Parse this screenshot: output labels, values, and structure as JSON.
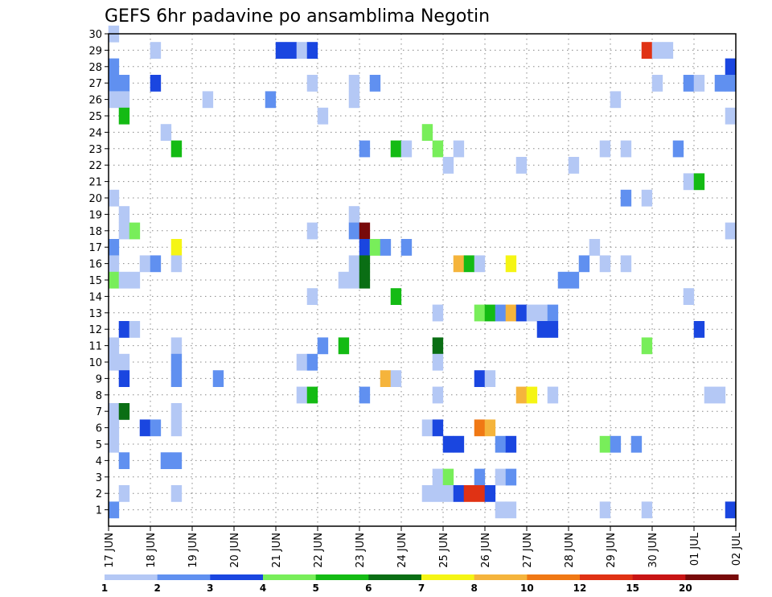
{
  "chart_data": {
    "type": "heatmap",
    "title": "GEFS 6hr padavine po ansamblima Negotin",
    "xlabel": "",
    "ylabel": "",
    "x_tick_labels": [
      "17 JUN",
      "18 JUN",
      "19 JUN",
      "20 JUN",
      "21 JUN",
      "22 JUN",
      "23 JUN",
      "24 JUN",
      "25 JUN",
      "26 JUN",
      "27 JUN",
      "28 JUN",
      "29 JUN",
      "30 JUN",
      "01 JUL",
      "02 JUL"
    ],
    "y_tick_labels": [
      "1",
      "2",
      "3",
      "4",
      "5",
      "6",
      "7",
      "8",
      "9",
      "10",
      "11",
      "12",
      "13",
      "14",
      "15",
      "16",
      "17",
      "18",
      "19",
      "20",
      "21",
      "22",
      "23",
      "24",
      "25",
      "26",
      "27",
      "28",
      "29",
      "30"
    ],
    "x_range_days": [
      0,
      15
    ],
    "y_range_members": [
      0,
      30
    ],
    "grid": true,
    "legend_placement": "bottom",
    "legend": {
      "labels": [
        "1",
        "2",
        "3",
        "4",
        "5",
        "6",
        "7",
        "8",
        "10",
        "12",
        "15",
        "20"
      ],
      "colors": [
        "#b4c8f5",
        "#6090f0",
        "#1a46e0",
        "#78ee5a",
        "#14bb14",
        "#0a6e14",
        "#f5f514",
        "#f5b43c",
        "#f07814",
        "#e03214",
        "#c81414",
        "#780a0a"
      ]
    },
    "cells": [
      [
        0.12,
        30,
        "#b4c8f5"
      ],
      [
        4.12,
        29,
        "#1a46e0"
      ],
      [
        4.37,
        29,
        "#1a46e0"
      ],
      [
        4.62,
        29,
        "#b4c8f5"
      ],
      [
        4.87,
        29,
        "#1a46e0"
      ],
      [
        1.12,
        29,
        "#b4c8f5"
      ],
      [
        12.87,
        29,
        "#e03214"
      ],
      [
        13.12,
        29,
        "#b4c8f5"
      ],
      [
        13.37,
        29,
        "#b4c8f5"
      ],
      [
        0.12,
        28,
        "#6090f0"
      ],
      [
        14.87,
        28,
        "#1a46e0"
      ],
      [
        0.12,
        27,
        "#6090f0"
      ],
      [
        0.37,
        27,
        "#6090f0"
      ],
      [
        1.12,
        27,
        "#1a46e0"
      ],
      [
        4.87,
        27,
        "#b4c8f5"
      ],
      [
        5.87,
        27,
        "#b4c8f5"
      ],
      [
        6.37,
        27,
        "#6090f0"
      ],
      [
        13.12,
        27,
        "#b4c8f5"
      ],
      [
        13.87,
        27,
        "#6090f0"
      ],
      [
        14.12,
        27,
        "#b4c8f5"
      ],
      [
        14.62,
        27,
        "#6090f0"
      ],
      [
        14.87,
        27,
        "#6090f0"
      ],
      [
        0.12,
        26,
        "#b4c8f5"
      ],
      [
        0.37,
        26,
        "#b4c8f5"
      ],
      [
        2.37,
        26,
        "#b4c8f5"
      ],
      [
        3.87,
        26,
        "#6090f0"
      ],
      [
        5.87,
        26,
        "#b4c8f5"
      ],
      [
        12.12,
        26,
        "#b4c8f5"
      ],
      [
        0.37,
        25,
        "#14bb14"
      ],
      [
        5.12,
        25,
        "#b4c8f5"
      ],
      [
        14.87,
        25,
        "#b4c8f5"
      ],
      [
        1.37,
        24,
        "#b4c8f5"
      ],
      [
        7.62,
        24,
        "#78ee5a"
      ],
      [
        1.62,
        23,
        "#14bb14"
      ],
      [
        6.12,
        23,
        "#6090f0"
      ],
      [
        6.87,
        23,
        "#14bb14"
      ],
      [
        7.12,
        23,
        "#b4c8f5"
      ],
      [
        7.87,
        23,
        "#78ee5a"
      ],
      [
        8.37,
        23,
        "#b4c8f5"
      ],
      [
        11.87,
        23,
        "#b4c8f5"
      ],
      [
        12.37,
        23,
        "#b4c8f5"
      ],
      [
        13.62,
        23,
        "#6090f0"
      ],
      [
        8.12,
        22,
        "#b4c8f5"
      ],
      [
        9.87,
        22,
        "#b4c8f5"
      ],
      [
        11.12,
        22,
        "#b4c8f5"
      ],
      [
        13.87,
        21,
        "#b4c8f5"
      ],
      [
        14.12,
        21,
        "#14bb14"
      ],
      [
        0.12,
        20,
        "#b4c8f5"
      ],
      [
        12.37,
        20,
        "#6090f0"
      ],
      [
        12.87,
        20,
        "#b4c8f5"
      ],
      [
        0.37,
        19,
        "#b4c8f5"
      ],
      [
        5.87,
        19,
        "#b4c8f5"
      ],
      [
        0.37,
        18,
        "#b4c8f5"
      ],
      [
        0.62,
        18,
        "#78ee5a"
      ],
      [
        4.87,
        18,
        "#b4c8f5"
      ],
      [
        5.87,
        18,
        "#6090f0"
      ],
      [
        6.12,
        18,
        "#780a0a"
      ],
      [
        14.87,
        18,
        "#b4c8f5"
      ],
      [
        0.12,
        17,
        "#6090f0"
      ],
      [
        1.62,
        17,
        "#f5f514"
      ],
      [
        6.12,
        17,
        "#1a46e0"
      ],
      [
        6.37,
        17,
        "#78ee5a"
      ],
      [
        6.62,
        17,
        "#6090f0"
      ],
      [
        7.12,
        17,
        "#6090f0"
      ],
      [
        11.62,
        17,
        "#b4c8f5"
      ],
      [
        0.12,
        16,
        "#b4c8f5"
      ],
      [
        0.87,
        16,
        "#b4c8f5"
      ],
      [
        1.12,
        16,
        "#6090f0"
      ],
      [
        1.62,
        16,
        "#b4c8f5"
      ],
      [
        5.87,
        16,
        "#b4c8f5"
      ],
      [
        6.12,
        16,
        "#0a6e14"
      ],
      [
        8.37,
        16,
        "#f5b43c"
      ],
      [
        8.62,
        16,
        "#14bb14"
      ],
      [
        8.87,
        16,
        "#b4c8f5"
      ],
      [
        9.62,
        16,
        "#f5f514"
      ],
      [
        11.37,
        16,
        "#6090f0"
      ],
      [
        11.87,
        16,
        "#b4c8f5"
      ],
      [
        12.37,
        16,
        "#b4c8f5"
      ],
      [
        0.12,
        15,
        "#78ee5a"
      ],
      [
        0.37,
        15,
        "#b4c8f5"
      ],
      [
        0.62,
        15,
        "#b4c8f5"
      ],
      [
        5.62,
        15,
        "#b4c8f5"
      ],
      [
        5.87,
        15,
        "#b4c8f5"
      ],
      [
        6.12,
        15,
        "#0a6e14"
      ],
      [
        10.87,
        15,
        "#6090f0"
      ],
      [
        11.12,
        15,
        "#6090f0"
      ],
      [
        4.87,
        14,
        "#b4c8f5"
      ],
      [
        6.87,
        14,
        "#14bb14"
      ],
      [
        13.87,
        14,
        "#b4c8f5"
      ],
      [
        7.87,
        13,
        "#b4c8f5"
      ],
      [
        8.87,
        13,
        "#78ee5a"
      ],
      [
        9.12,
        13,
        "#14bb14"
      ],
      [
        9.37,
        13,
        "#6090f0"
      ],
      [
        9.62,
        13,
        "#f5b43c"
      ],
      [
        9.87,
        13,
        "#1a46e0"
      ],
      [
        10.12,
        13,
        "#b4c8f5"
      ],
      [
        10.37,
        13,
        "#b4c8f5"
      ],
      [
        10.62,
        13,
        "#6090f0"
      ],
      [
        0.37,
        12,
        "#1a46e0"
      ],
      [
        0.62,
        12,
        "#b4c8f5"
      ],
      [
        10.37,
        12,
        "#1a46e0"
      ],
      [
        10.62,
        12,
        "#1a46e0"
      ],
      [
        14.12,
        12,
        "#1a46e0"
      ],
      [
        0.12,
        11,
        "#b4c8f5"
      ],
      [
        1.62,
        11,
        "#b4c8f5"
      ],
      [
        5.12,
        11,
        "#6090f0"
      ],
      [
        5.62,
        11,
        "#14bb14"
      ],
      [
        7.87,
        11,
        "#0a6e14"
      ],
      [
        12.87,
        11,
        "#78ee5a"
      ],
      [
        0.12,
        10,
        "#b4c8f5"
      ],
      [
        0.37,
        10,
        "#b4c8f5"
      ],
      [
        1.62,
        10,
        "#6090f0"
      ],
      [
        4.62,
        10,
        "#b4c8f5"
      ],
      [
        4.87,
        10,
        "#6090f0"
      ],
      [
        7.87,
        10,
        "#b4c8f5"
      ],
      [
        0.37,
        9,
        "#1a46e0"
      ],
      [
        1.62,
        9,
        "#6090f0"
      ],
      [
        2.62,
        9,
        "#6090f0"
      ],
      [
        6.62,
        9,
        "#f5b43c"
      ],
      [
        6.87,
        9,
        "#b4c8f5"
      ],
      [
        8.87,
        9,
        "#1a46e0"
      ],
      [
        9.12,
        9,
        "#b4c8f5"
      ],
      [
        4.62,
        8,
        "#b4c8f5"
      ],
      [
        4.87,
        8,
        "#14bb14"
      ],
      [
        6.12,
        8,
        "#6090f0"
      ],
      [
        7.87,
        8,
        "#b4c8f5"
      ],
      [
        9.87,
        8,
        "#f5b43c"
      ],
      [
        10.12,
        8,
        "#f5f514"
      ],
      [
        10.62,
        8,
        "#b4c8f5"
      ],
      [
        14.37,
        8,
        "#b4c8f5"
      ],
      [
        14.62,
        8,
        "#b4c8f5"
      ],
      [
        0.12,
        7,
        "#b4c8f5"
      ],
      [
        0.37,
        7,
        "#0a6e14"
      ],
      [
        1.62,
        7,
        "#b4c8f5"
      ],
      [
        0.12,
        6,
        "#b4c8f5"
      ],
      [
        0.87,
        6,
        "#1a46e0"
      ],
      [
        1.12,
        6,
        "#6090f0"
      ],
      [
        1.62,
        6,
        "#b4c8f5"
      ],
      [
        7.62,
        6,
        "#b4c8f5"
      ],
      [
        7.87,
        6,
        "#1a46e0"
      ],
      [
        8.87,
        6,
        "#f07814"
      ],
      [
        9.12,
        6,
        "#f5b43c"
      ],
      [
        0.12,
        5,
        "#b4c8f5"
      ],
      [
        8.12,
        5,
        "#1a46e0"
      ],
      [
        8.37,
        5,
        "#1a46e0"
      ],
      [
        9.37,
        5,
        "#6090f0"
      ],
      [
        9.62,
        5,
        "#1a46e0"
      ],
      [
        11.87,
        5,
        "#78ee5a"
      ],
      [
        12.12,
        5,
        "#6090f0"
      ],
      [
        12.62,
        5,
        "#6090f0"
      ],
      [
        0.37,
        4,
        "#6090f0"
      ],
      [
        1.37,
        4,
        "#6090f0"
      ],
      [
        1.62,
        4,
        "#6090f0"
      ],
      [
        7.87,
        3,
        "#b4c8f5"
      ],
      [
        8.12,
        3,
        "#78ee5a"
      ],
      [
        8.87,
        3,
        "#6090f0"
      ],
      [
        9.37,
        3,
        "#b4c8f5"
      ],
      [
        9.62,
        3,
        "#6090f0"
      ],
      [
        0.37,
        2,
        "#b4c8f5"
      ],
      [
        1.62,
        2,
        "#b4c8f5"
      ],
      [
        7.62,
        2,
        "#b4c8f5"
      ],
      [
        7.87,
        2,
        "#b4c8f5"
      ],
      [
        8.12,
        2,
        "#b4c8f5"
      ],
      [
        8.37,
        2,
        "#1a46e0"
      ],
      [
        8.62,
        2,
        "#e03214"
      ],
      [
        8.87,
        2,
        "#e03214"
      ],
      [
        9.12,
        2,
        "#1a46e0"
      ],
      [
        0.12,
        1,
        "#6090f0"
      ],
      [
        9.37,
        1,
        "#b4c8f5"
      ],
      [
        9.62,
        1,
        "#b4c8f5"
      ],
      [
        11.87,
        1,
        "#b4c8f5"
      ],
      [
        12.87,
        1,
        "#b4c8f5"
      ],
      [
        14.87,
        1,
        "#1a46e0"
      ]
    ]
  }
}
